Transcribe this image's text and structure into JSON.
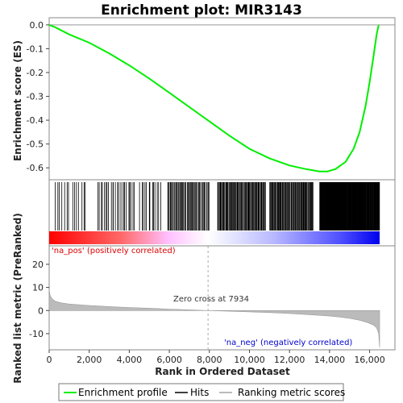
{
  "chart_data": {
    "type": "line",
    "title": "Enrichment plot: MIR3143",
    "n_genes": 16500,
    "zero_cross": 7934,
    "es_panel": {
      "ylabel": "Enrichment score (ES)",
      "ylim": [
        -0.65,
        0.03
      ],
      "yticks": [
        "0.0",
        "-0.1",
        "-0.2",
        "-0.3",
        "-0.4",
        "-0.5",
        "-0.6"
      ],
      "ytick_values": [
        0.0,
        -0.1,
        -0.2,
        -0.3,
        -0.4,
        -0.5,
        -0.6
      ],
      "series": [
        {
          "name": "Enrichment profile",
          "color": "#00ee00",
          "x": [
            0,
            300,
            1000,
            2000,
            3000,
            4000,
            5000,
            6000,
            7000,
            8000,
            9000,
            10000,
            11000,
            12000,
            12800,
            13500,
            13900,
            14300,
            14800,
            15200,
            15500,
            15800,
            16000,
            16200,
            16350,
            16450
          ],
          "y": [
            0.0,
            -0.01,
            -0.04,
            -0.075,
            -0.12,
            -0.17,
            -0.225,
            -0.285,
            -0.345,
            -0.405,
            -0.465,
            -0.52,
            -0.56,
            -0.59,
            -0.605,
            -0.615,
            -0.615,
            -0.605,
            -0.575,
            -0.52,
            -0.45,
            -0.34,
            -0.24,
            -0.13,
            -0.04,
            0.0
          ]
        }
      ]
    },
    "hits_panel": {
      "label": "Hits",
      "segments": [
        {
          "from": 250,
          "to": 1900,
          "n": 14
        },
        {
          "from": 2400,
          "to": 4300,
          "n": 24
        },
        {
          "from": 4500,
          "to": 5600,
          "n": 13
        },
        {
          "from": 5900,
          "to": 8000,
          "n": 48
        },
        {
          "from": 8400,
          "to": 10800,
          "n": 72
        },
        {
          "from": 11000,
          "to": 13200,
          "n": 70
        },
        {
          "from": 13500,
          "to": 16500,
          "n": 200
        }
      ]
    },
    "ranked_panel": {
      "ylabel": "Ranked list metric (PreRanked)",
      "xlabel": "Rank in Ordered Dataset",
      "ylim": [
        -17,
        28
      ],
      "yticks": [
        "20",
        "10",
        "0",
        "-10"
      ],
      "ytick_values": [
        20,
        10,
        0,
        -10
      ],
      "xticks": [
        "0",
        "2,000",
        "4,000",
        "6,000",
        "8,000",
        "10,000",
        "12,000",
        "14,000",
        "16,000"
      ],
      "xtick_values": [
        0,
        2000,
        4000,
        6000,
        8000,
        10000,
        12000,
        14000,
        16000
      ],
      "metric_x": [
        0,
        50,
        150,
        300,
        600,
        1000,
        2000,
        3000,
        4000,
        5000,
        6000,
        7000,
        7934,
        9000,
        10000,
        11000,
        12000,
        13000,
        14000,
        14500,
        15000,
        15500,
        15900,
        16200,
        16350,
        16450,
        16500
      ],
      "metric_y": [
        9.0,
        6.5,
        5.0,
        4.0,
        3.3,
        2.8,
        2.2,
        1.7,
        1.3,
        1.0,
        0.6,
        0.3,
        0.0,
        -0.3,
        -0.6,
        -0.9,
        -1.3,
        -1.8,
        -2.4,
        -2.8,
        -3.4,
        -4.2,
        -5.2,
        -6.3,
        -7.5,
        -10.0,
        -16.0
      ],
      "pos_label": "'na_pos' (positively correlated)",
      "neg_label": "'na_neg' (negatively correlated)",
      "zero_cross_label": "Zero cross at 7934"
    },
    "legend": {
      "items": [
        "Enrichment profile",
        "Hits",
        "Ranking metric scores"
      ],
      "colors": [
        "#00ee00",
        "#000000",
        "#bbbbbb"
      ],
      "position": "bottom"
    },
    "colors": {
      "pos_text": "#dd0000",
      "neg_text": "#0000cc",
      "metric_fill": "#bbbbbb",
      "heat_pos": "#ff0000",
      "heat_neg": "#0000ff"
    }
  }
}
